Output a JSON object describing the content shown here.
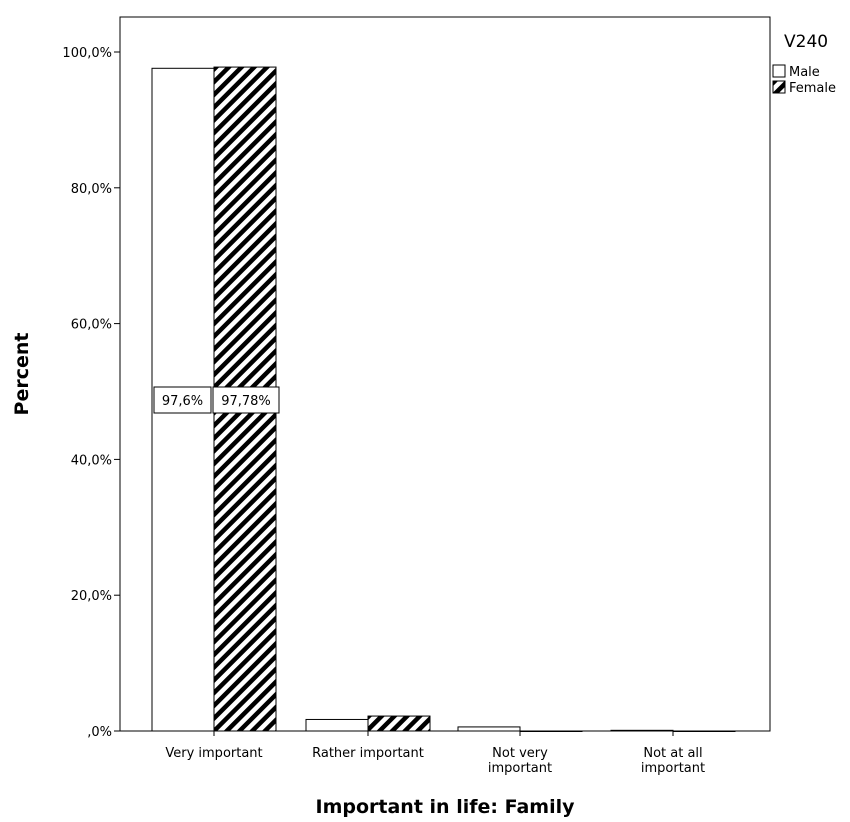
{
  "chart_data": {
    "type": "bar",
    "xlabel": "Important in life: Family",
    "ylabel": "Percent",
    "categories": [
      [
        "Very important"
      ],
      [
        "Rather important"
      ],
      [
        "Not very",
        "important"
      ],
      [
        "Not at all",
        "important"
      ]
    ],
    "ylim": [
      0,
      105
    ],
    "yticks": [
      0,
      20,
      40,
      60,
      80,
      100
    ],
    "ytick_labels": [
      ",0%",
      "20,0%",
      "40,0%",
      "60,0%",
      "80,0%",
      "100,0%"
    ],
    "grid": false,
    "legend": {
      "title": "V240",
      "position": "right"
    },
    "series": [
      {
        "name": "Male",
        "values": [
          97.6,
          1.7,
          0.6,
          0.1
        ],
        "pattern": "solid-white",
        "data_labels": [
          "97,6%",
          null,
          null,
          null
        ]
      },
      {
        "name": "Female",
        "values": [
          97.78,
          2.2,
          0.0,
          0.0
        ],
        "pattern": "diagonal-hatch",
        "data_labels": [
          "97,78%",
          null,
          null,
          null
        ]
      }
    ]
  }
}
